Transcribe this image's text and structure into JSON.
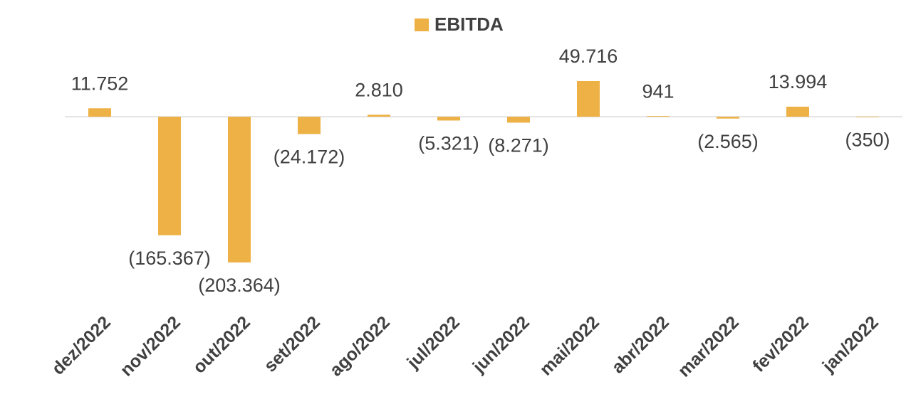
{
  "chart_data": {
    "type": "bar",
    "legend": "top",
    "series": [
      {
        "name": "EBITDA",
        "color": "#edb145",
        "values": [
          11752,
          -165367,
          -203364,
          -24172,
          2810,
          -5321,
          -8271,
          49716,
          941,
          -2565,
          13994,
          -350
        ],
        "value_labels": [
          "11.752",
          "(165.367)",
          "(203.364)",
          "(24.172)",
          "2.810",
          "(5.321)",
          "(8.271)",
          "49.716",
          "941",
          "(2.565)",
          "13.994",
          "(350)"
        ]
      }
    ],
    "categories": [
      "dez/2022",
      "nov/2022",
      "out/2022",
      "set/2022",
      "ago/2022",
      "jul/2022",
      "jun/2022",
      "mai/2022",
      "abr/2022",
      "mar/2022",
      "fev/2022",
      "jan/2022"
    ]
  }
}
